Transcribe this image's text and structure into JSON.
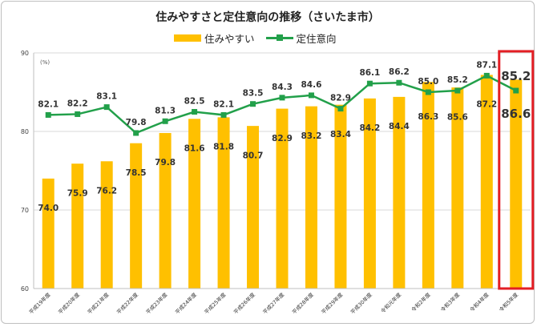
{
  "chart_data": {
    "type": "bar",
    "title": "住みやすさと定住意向の推移（さいたま市）",
    "unit": "(%)",
    "categories": [
      "平成19年度",
      "平成20年度",
      "平成21年度",
      "平成22年度",
      "平成23年度",
      "平成24年度",
      "平成25年度",
      "平成26年度",
      "平成27年度",
      "平成28年度",
      "平成29年度",
      "平成30年度",
      "令和元年度",
      "令和2年度",
      "令和3年度",
      "令和4年度",
      "令和5年度"
    ],
    "series": [
      {
        "name": "住みやすい",
        "type": "bar",
        "color": "#ffc000",
        "values": [
          74.0,
          75.9,
          76.2,
          78.5,
          79.8,
          81.6,
          81.8,
          80.7,
          82.9,
          83.2,
          83.4,
          84.2,
          84.4,
          86.3,
          85.6,
          87.2,
          86.6
        ]
      },
      {
        "name": "定住意向",
        "type": "line",
        "color": "#22a04a",
        "values": [
          82.1,
          82.2,
          83.1,
          79.8,
          81.3,
          82.5,
          82.1,
          83.5,
          84.3,
          84.6,
          82.9,
          86.1,
          86.2,
          85.0,
          85.2,
          87.1,
          85.2
        ]
      }
    ],
    "yticks": [
      60,
      70,
      80,
      90
    ],
    "ylim": [
      60,
      90
    ],
    "grid": true,
    "legend": "top",
    "highlight": {
      "category": "令和5年度",
      "color": "#e31e24"
    }
  }
}
